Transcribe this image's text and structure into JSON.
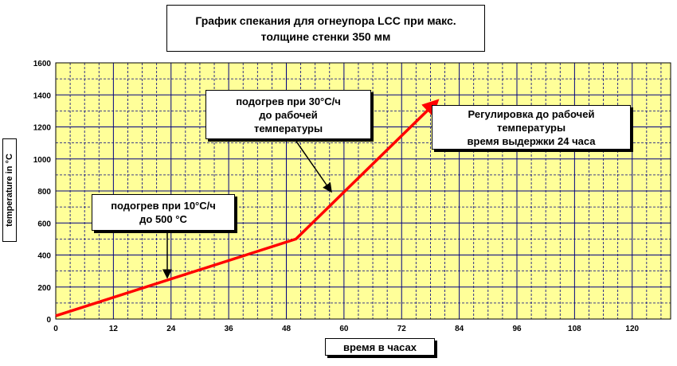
{
  "chart_data": {
    "type": "line",
    "title": [
      "График спекания для огнеупора LCC при макс.",
      "толщине стенки 350 мм"
    ],
    "xlabel": "время в часах",
    "ylabel": "temperature in °C",
    "xlim": [
      0,
      128
    ],
    "ylim": [
      0,
      1600
    ],
    "x_ticks": [
      "0",
      "12",
      "24",
      "36",
      "48",
      "60",
      "72",
      "84",
      "96",
      "108",
      "120"
    ],
    "y_ticks": [
      "0",
      "200",
      "400",
      "600",
      "800",
      "1000",
      "1200",
      "1400",
      "1600"
    ],
    "grid": true,
    "series": [
      {
        "x": [
          0,
          50,
          79
        ],
        "y": [
          20,
          500,
          1350
        ]
      }
    ],
    "annotations": [
      {
        "lines": [
          "подогрев при 10°C/ч",
          "до 500 °C"
        ]
      },
      {
        "lines": [
          "подогрев при 30°C/ч",
          "до рабочей",
          "температуры"
        ]
      },
      {
        "lines": [
          "Регулировка до рабочей",
          "температуры",
          "время выдержки 24 часа"
        ]
      }
    ]
  },
  "colors": {
    "plot_bg": "#ffff99",
    "grid": "#000080",
    "series": "#ff0000"
  }
}
